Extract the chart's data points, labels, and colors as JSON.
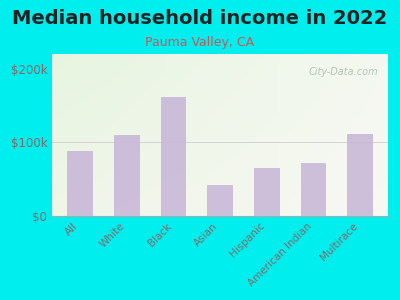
{
  "title": "Median household income in 2022",
  "subtitle": "Pauma Valley, CA",
  "categories": [
    "All",
    "White",
    "Black",
    "Asian",
    "Hispanic",
    "American Indian",
    "Multirace"
  ],
  "values": [
    88000,
    110000,
    162000,
    42000,
    65000,
    72000,
    112000
  ],
  "bar_color": "#c9b8d8",
  "background_outer": "#00EEEE",
  "bg_top_left": "#e6f5e0",
  "bg_top_right": "#f5f5ee",
  "bg_bottom": "#f0f0e8",
  "title_fontsize": 14,
  "title_fontweight": "bold",
  "subtitle_fontsize": 9,
  "subtitle_color": "#cc5555",
  "tick_label_color": "#886666",
  "ylim": [
    0,
    220000
  ],
  "yticks": [
    0,
    100000,
    200000
  ],
  "ytick_labels": [
    "$0",
    "$100k",
    "$200k"
  ],
  "watermark": "City-Data.com",
  "watermark_color": "#aabbaa",
  "gridline_color": "#cccccc"
}
